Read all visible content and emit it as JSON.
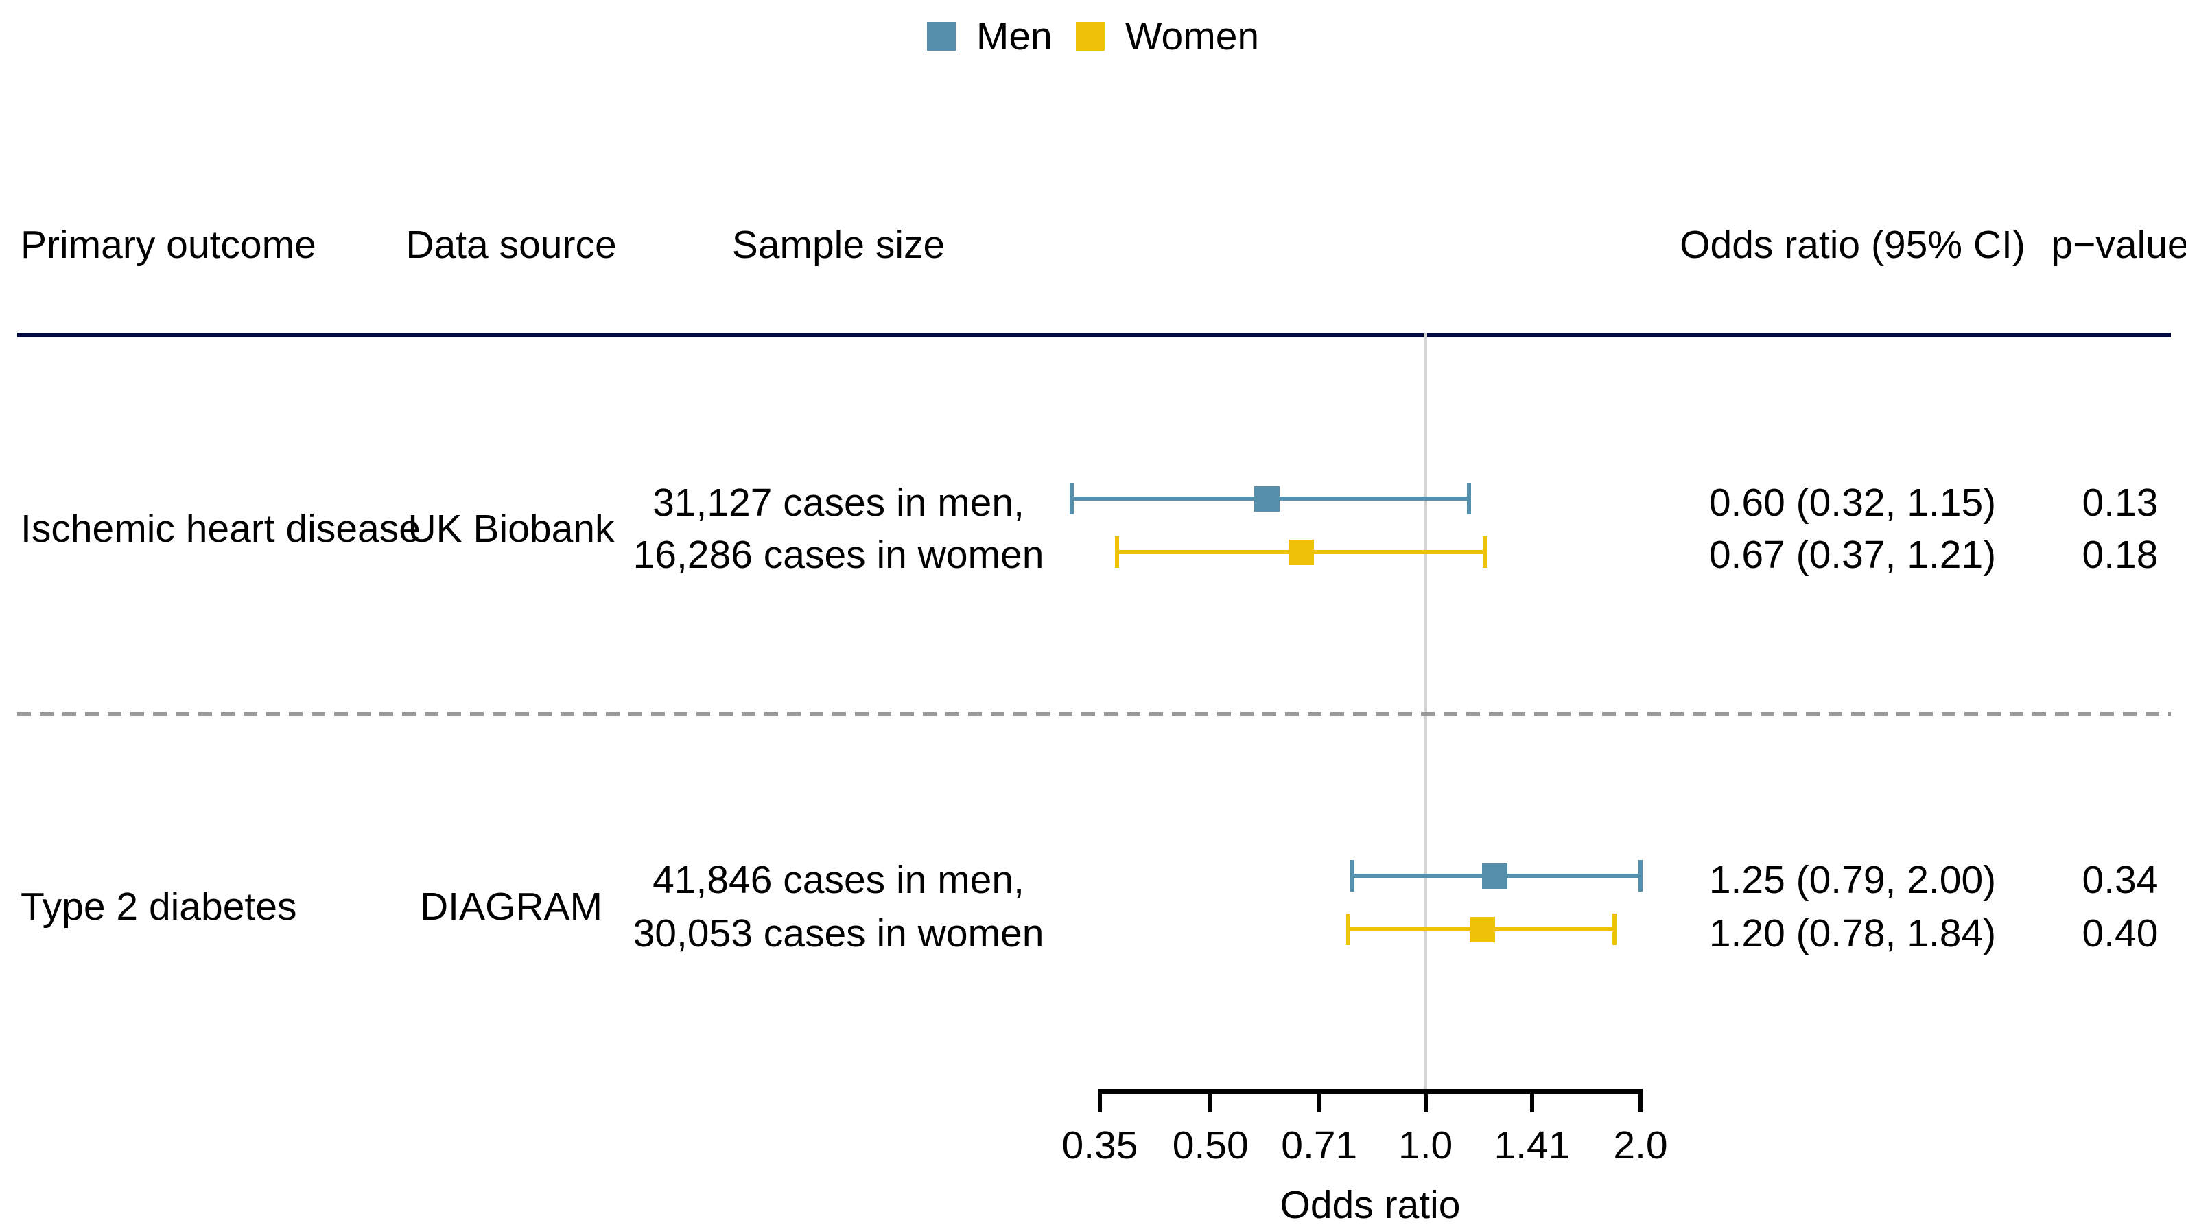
{
  "legend": {
    "items": [
      {
        "label": "Men",
        "color": "#5490ac"
      },
      {
        "label": "Women",
        "color": "#eec208"
      }
    ]
  },
  "headers": {
    "primary_outcome": "Primary outcome",
    "data_source": "Data source",
    "sample_size": "Sample size",
    "odds_ratio": "Odds ratio (95% CI)",
    "p_value": "p−value"
  },
  "colors": {
    "men": "#5490ac",
    "women": "#eec208",
    "header_rule": "#040a3c",
    "separator": "#999999",
    "reference_line": "#d4d4d4",
    "axis": "#000000"
  },
  "chart_data": {
    "type": "scatter",
    "variant": "forest-plot",
    "title": "",
    "legend": [
      "Men",
      "Women"
    ],
    "legend_position": "top-center",
    "x_axis": {
      "label": "Odds ratio",
      "scale": "log",
      "min": 0.35,
      "max": 2.0,
      "tick_values": [
        0.35,
        0.5,
        0.71,
        1.0,
        1.41,
        2.0
      ],
      "tick_labels": [
        "0.35",
        "0.50",
        "0.71",
        "1.0",
        "1.41",
        "2.0"
      ],
      "reference_line": 1.0
    },
    "columns": [
      "Primary outcome",
      "Data source",
      "Sample size",
      "Odds ratio (95% CI)",
      "p−value"
    ],
    "rows": [
      {
        "outcome": "Ischemic heart disease",
        "source": "UK Biobank",
        "sample_lines": [
          "31,127 cases in men,",
          "16,286 cases in women"
        ],
        "series": [
          {
            "group": "men",
            "estimate": 0.6,
            "ci_low": 0.32,
            "ci_high": 1.15,
            "or_text": "0.60 (0.32, 1.15)",
            "p_value": "0.13"
          },
          {
            "group": "women",
            "estimate": 0.67,
            "ci_low": 0.37,
            "ci_high": 1.21,
            "or_text": "0.67 (0.37, 1.21)",
            "p_value": "0.18"
          }
        ]
      },
      {
        "outcome": "Type 2 diabetes",
        "source": "DIAGRAM",
        "sample_lines": [
          "41,846 cases in men,",
          "30,053 cases in women"
        ],
        "series": [
          {
            "group": "men",
            "estimate": 1.25,
            "ci_low": 0.79,
            "ci_high": 2.0,
            "or_text": "1.25 (0.79, 2.00)",
            "p_value": "0.34"
          },
          {
            "group": "women",
            "estimate": 1.2,
            "ci_low": 0.78,
            "ci_high": 1.84,
            "or_text": "1.20 (0.78, 1.84)",
            "p_value": "0.40"
          }
        ]
      }
    ]
  }
}
